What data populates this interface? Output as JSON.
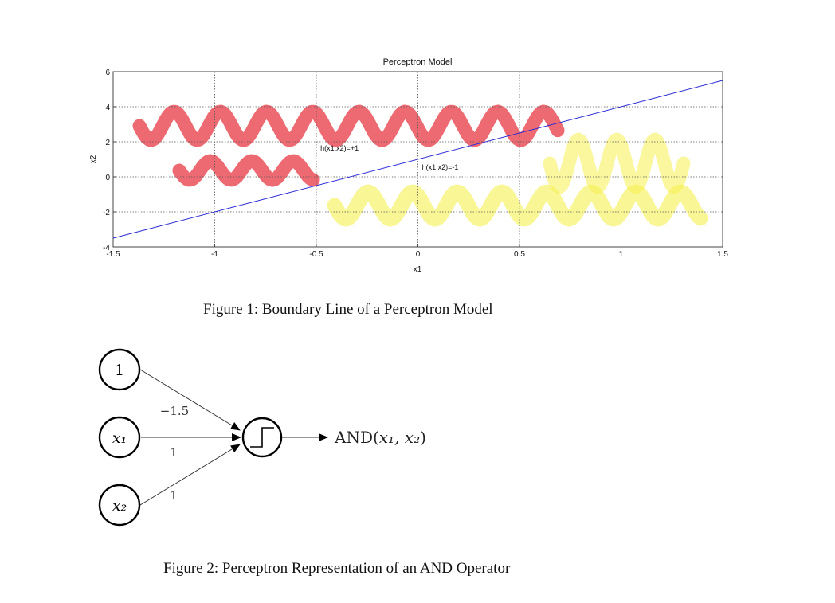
{
  "chart_data": {
    "type": "line",
    "title": "Perceptron Model",
    "xlabel": "x1",
    "ylabel": "x2",
    "xlim": [
      -1.5,
      1.5
    ],
    "ylim": [
      -4,
      6
    ],
    "xticks": [
      -1.5,
      -1,
      -0.5,
      0,
      0.5,
      1,
      1.5
    ],
    "xtick_labels": [
      "-1.5",
      "-1",
      "-0.5",
      "0",
      "0.5",
      "1",
      "1.5"
    ],
    "yticks": [
      -4,
      -2,
      0,
      2,
      4,
      6
    ],
    "ytick_labels": [
      "-4",
      "-2",
      "0",
      "2",
      "4",
      "6"
    ],
    "grid": true,
    "series": [
      {
        "x": [
          -1.5,
          1.5
        ],
        "y": [
          -3.5,
          5.5
        ],
        "color": "#2b2bd6"
      }
    ],
    "annotations": [
      {
        "text": "h(x1,x2)=+1",
        "x": -0.48,
        "y": 1.5
      },
      {
        "text": "h(x1,x2)=-1",
        "x": 0.02,
        "y": 0.4
      }
    ],
    "region_colors": {
      "positive": "#e8303c",
      "negative": "#f5f050"
    }
  },
  "figure1": {
    "caption": "Figure 1: Boundary Line of a Perceptron Model"
  },
  "figure2": {
    "inputs": [
      "1",
      "x₁",
      "x₂"
    ],
    "weights": [
      "−1.5",
      "1",
      "1"
    ],
    "output_label_prefix": "AND(",
    "output_label_args": "x₁, x₂",
    "output_label_suffix": ")",
    "caption": "Figure 2: Perceptron Representation of an AND Operator"
  }
}
